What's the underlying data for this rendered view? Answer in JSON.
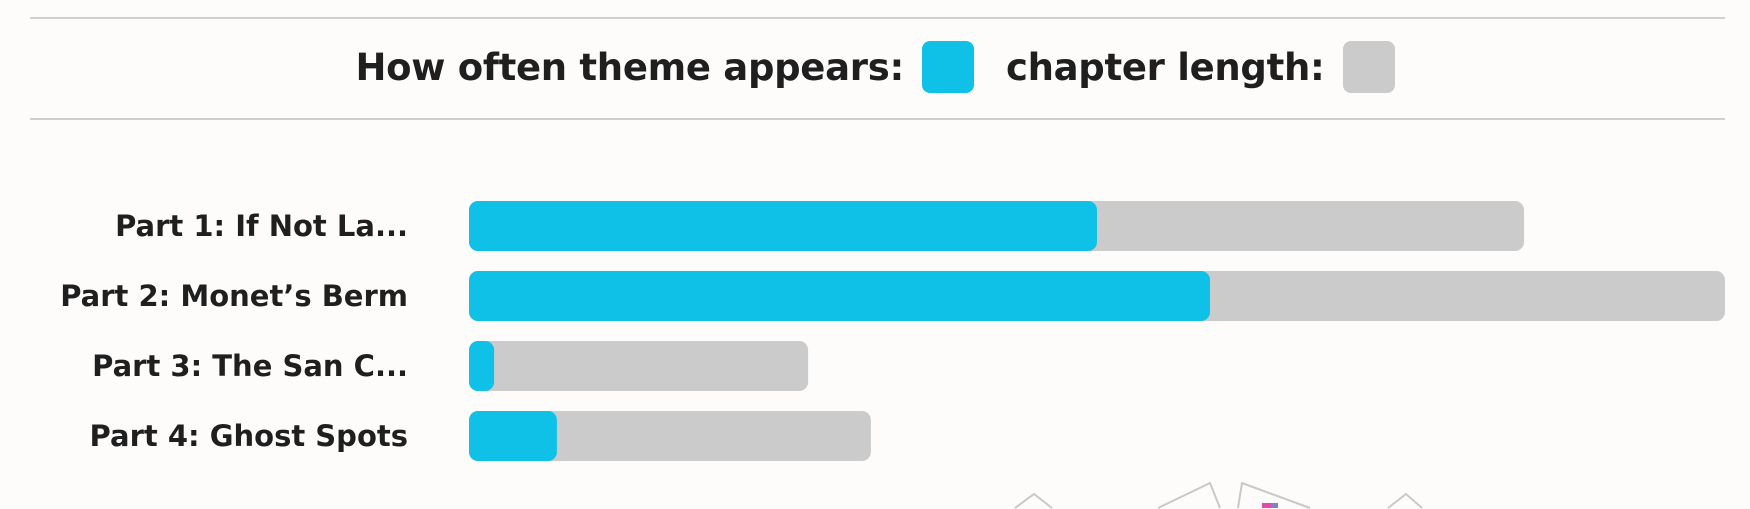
{
  "legend": {
    "frequency_label": "How often theme appears:",
    "length_label": "chapter length:"
  },
  "colors": {
    "frequency": "#0fc1e6",
    "length": "#cbcbcb"
  },
  "chart_data": {
    "type": "bar",
    "orientation": "horizontal",
    "layout": "overlay",
    "categories": [
      "Part 1: If Not La...",
      "Part 2: Monet’s Berm",
      "Part 3: The San C...",
      "Part 4: Ghost Spots"
    ],
    "series": [
      {
        "name": "How often theme appears:",
        "values": [
          50,
          59,
          2,
          7
        ]
      },
      {
        "name": "chapter length:",
        "values": [
          84,
          100,
          27,
          32
        ]
      }
    ],
    "xlim": [
      0,
      100
    ],
    "grid": false,
    "legend_position": "top-center"
  }
}
